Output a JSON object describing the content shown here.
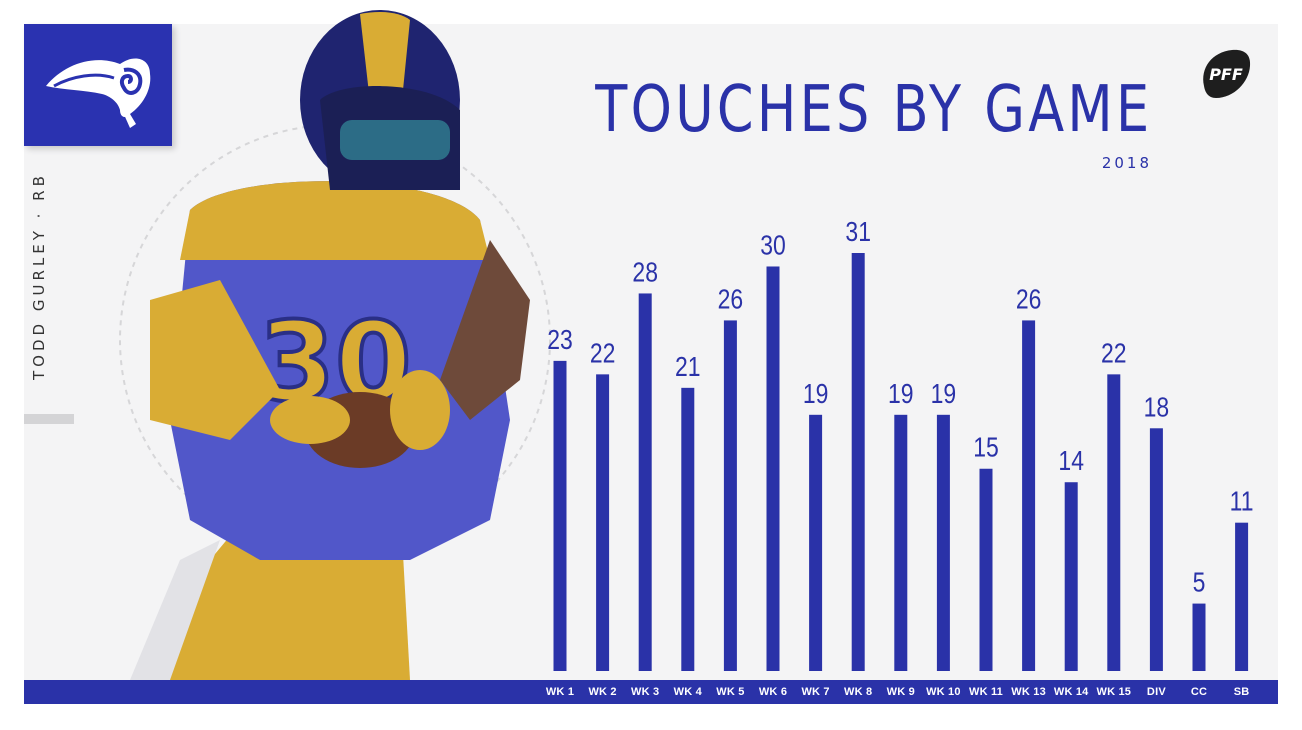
{
  "header": {
    "title": "TOUCHES BY GAME",
    "subtitle": "2018"
  },
  "player": {
    "caption": "TODD GURLEY · RB",
    "jersey_number": "30"
  },
  "icons": {
    "team_logo": "rams-horn-icon",
    "brand_logo": "pff-football-icon"
  },
  "colors": {
    "bar": "#2a32a8",
    "accent_gold": "#d9ac34",
    "panel_bg": "#f4f4f5"
  },
  "chart_data": {
    "type": "bar",
    "title": "TOUCHES BY GAME",
    "subtitle": "2018",
    "categories": [
      "WK 1",
      "WK 2",
      "WK 3",
      "WK 4",
      "WK 5",
      "WK 6",
      "WK 7",
      "WK 8",
      "WK 9",
      "WK 10",
      "WK 11",
      "WK 13",
      "WK 14",
      "WK 15",
      "DIV",
      "CC",
      "SB"
    ],
    "values": [
      23,
      22,
      28,
      21,
      26,
      30,
      19,
      31,
      19,
      19,
      15,
      26,
      14,
      22,
      18,
      5,
      11
    ],
    "ylim": [
      0,
      31
    ],
    "grid": false,
    "legend": "none",
    "data_labels": true
  }
}
